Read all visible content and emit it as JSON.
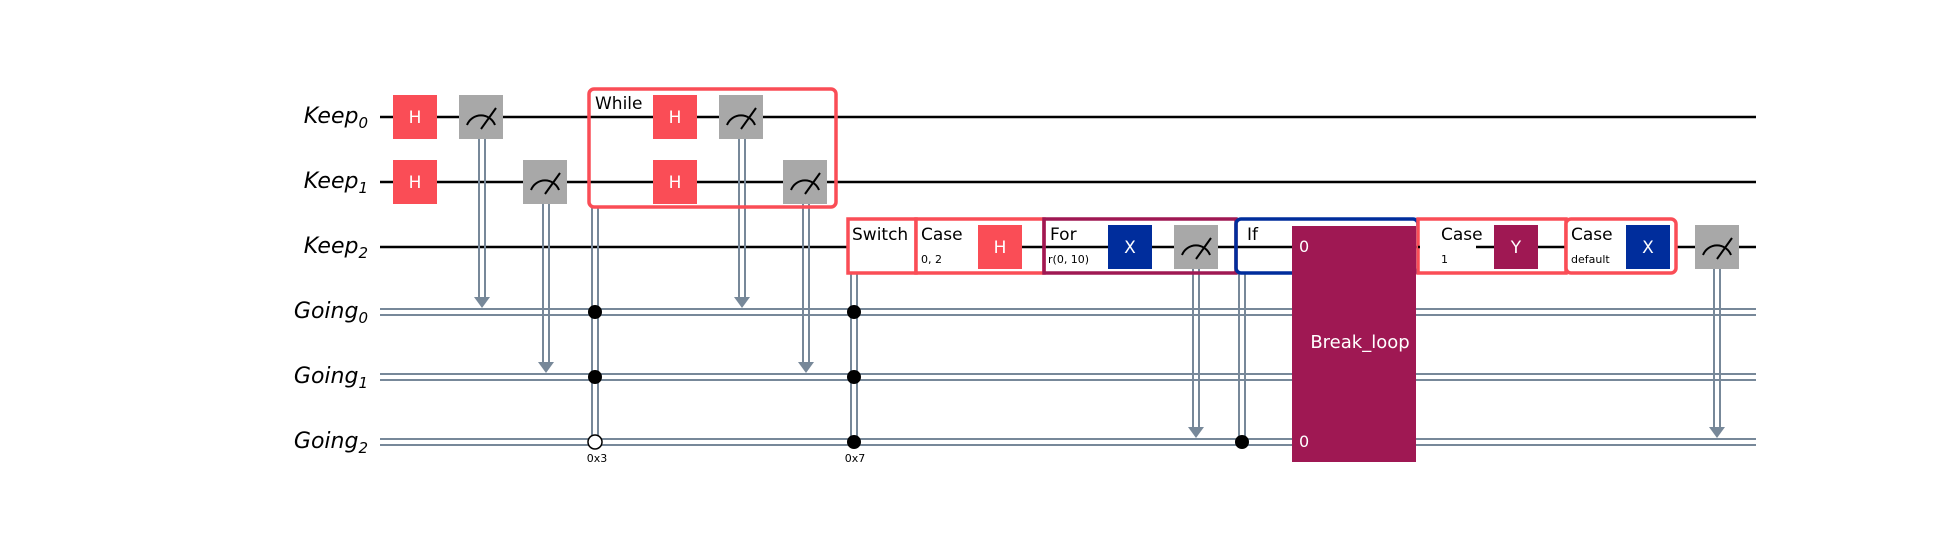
{
  "colors": {
    "h_gate": "#fa4d56",
    "measure": "#a8a8a8",
    "x_gate": "#002d9c",
    "y_gate": "#9f1853",
    "while_box": "#fa4d56",
    "switch_box": "#fa4d56",
    "for_box": "#9f1853",
    "if_box": "#002d9c",
    "classical": "#778899",
    "wire": "#000000"
  },
  "wires": [
    {
      "name": "Keep",
      "index": "0",
      "type": "quantum"
    },
    {
      "name": "Keep",
      "index": "1",
      "type": "quantum"
    },
    {
      "name": "Keep",
      "index": "2",
      "type": "quantum"
    },
    {
      "name": "Going",
      "index": "0",
      "type": "classical"
    },
    {
      "name": "Going",
      "index": "1",
      "type": "classical"
    },
    {
      "name": "Going",
      "index": "2",
      "type": "classical"
    }
  ],
  "gates": {
    "h": "H",
    "x": "X",
    "y": "Y"
  },
  "icons": {
    "measure": "measure-meter-icon"
  },
  "ops": {
    "while_label": "While",
    "while_cond": "0x3",
    "switch_label": "Switch",
    "switch_value": "0x7",
    "case1_label": "Case",
    "case1_values": "0, 2",
    "for_label": "For",
    "for_range": "r(0, 10)",
    "if_label": "If",
    "break_label": "Break_loop",
    "break_top_index": "0",
    "break_bottom_index": "0",
    "case2_label": "Case",
    "case2_values": "1",
    "case3_label": "Case",
    "case3_values": "default"
  }
}
